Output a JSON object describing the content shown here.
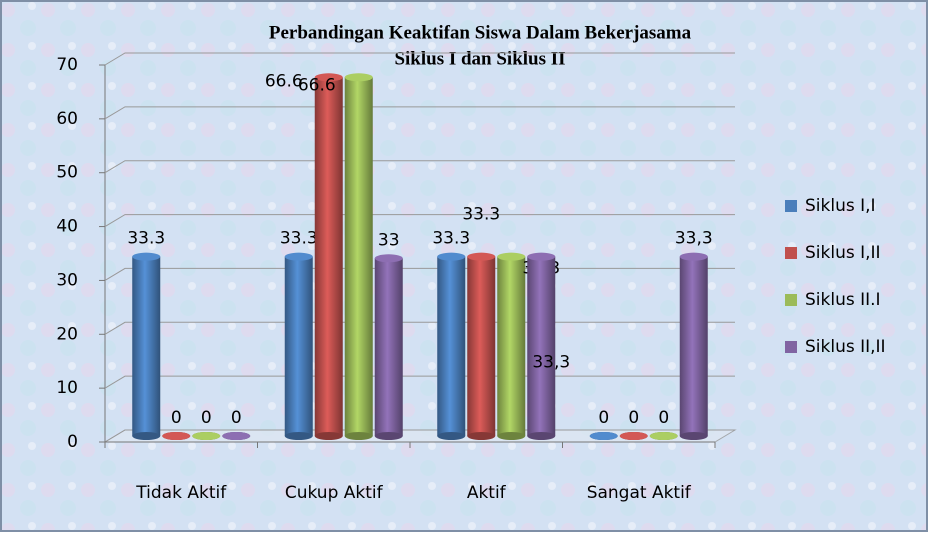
{
  "chart_data": {
    "type": "bar",
    "title": [
      "Perbandingan Keaktifan Siswa Dalam Bekerjasama",
      "Siklus I dan Siklus II"
    ],
    "categories": [
      "Tidak Aktif",
      "Cukup Aktif",
      "Aktif",
      "Sangat Aktif"
    ],
    "series": [
      {
        "name": "Siklus I,I",
        "color": "#4a7ebb",
        "values": [
          33.3,
          33.3,
          33.3,
          0
        ]
      },
      {
        "name": "Siklus I,II",
        "color": "#c0504d",
        "values": [
          0,
          66.6,
          33.3,
          0
        ]
      },
      {
        "name": "Siklus II.I",
        "color": "#9bbb59",
        "values": [
          0,
          66.6,
          33.3,
          0
        ]
      },
      {
        "name": "Siklus II,II",
        "color": "#8064a2",
        "values": [
          0,
          33,
          33.3,
          33.3
        ],
        "value_labels": [
          "0",
          "33",
          "33,3",
          "33,3"
        ]
      }
    ],
    "ylim": [
      0,
      70
    ],
    "yticks": [
      0,
      10,
      20,
      30,
      40,
      50,
      60,
      70
    ],
    "grid": true,
    "legend": "right"
  }
}
